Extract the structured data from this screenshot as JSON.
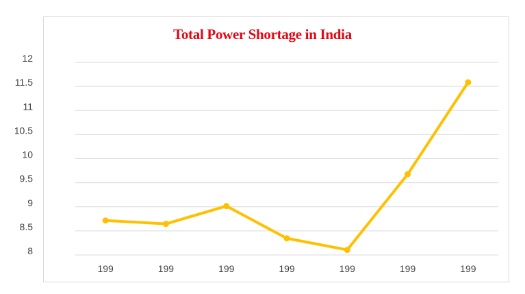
{
  "chart_data": {
    "type": "line",
    "title": "Total Power Shortage in India",
    "xlabel": "",
    "ylabel": "",
    "categories": [
      "199",
      "199",
      "199",
      "199",
      "199",
      "199",
      "199"
    ],
    "series": [
      {
        "values": [
          8.63,
          8.56,
          8.93,
          8.26,
          8.02,
          9.59,
          11.5
        ]
      }
    ],
    "ylim": [
      8,
      12
    ],
    "yticks": [
      "8",
      "8.5",
      "9",
      "9.5",
      "10",
      "10.5",
      "11",
      "11.5",
      "12"
    ],
    "grid": true,
    "legend": "none",
    "colors": {
      "line": "#FFC000",
      "title": "#E30613",
      "grid": "#D9D9D9",
      "tick_text": "#404040"
    }
  }
}
